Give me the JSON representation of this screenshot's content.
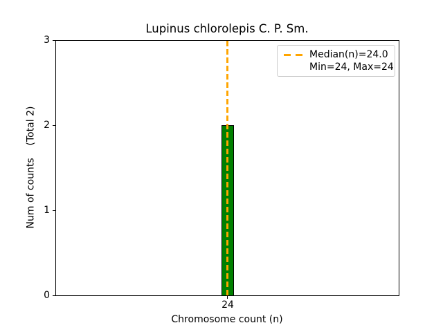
{
  "figure": {
    "title": "Lupinus chlorolepis C. P. Sm.",
    "xlabel": "Chromosome count (n)",
    "ylabel": "Num of counts    (Total 2)",
    "background_color": "#ffffff"
  },
  "chart_data": {
    "type": "bar",
    "title": "Lupinus chlorolepis C. P. Sm.",
    "xlabel": "Chromosome count (n)",
    "ylabel": "Num of counts    (Total 2)",
    "categories": [
      24
    ],
    "values": [
      2
    ],
    "total_counts": 2,
    "median_n": 24.0,
    "min_n": 24,
    "max_n": 24,
    "ylim": [
      0,
      3
    ],
    "yticks": [
      0,
      1,
      2,
      3
    ],
    "xticks": [
      24
    ],
    "grid": false,
    "bar_fill_color": "#008000",
    "bar_edge_color": "#000000",
    "median_line_color": "#FFA500",
    "median_line_style": "dashed",
    "legend_position": "upper right",
    "legend_entries": [
      "Median(n)=24.0",
      "Min=24, Max=24"
    ]
  },
  "ticks": {
    "y": [
      "3",
      "2",
      "1",
      "0"
    ],
    "x": [
      "24"
    ]
  },
  "legend": {
    "median_label": "Median(n)=24.0",
    "minmax_label": "Min=24, Max=24"
  }
}
